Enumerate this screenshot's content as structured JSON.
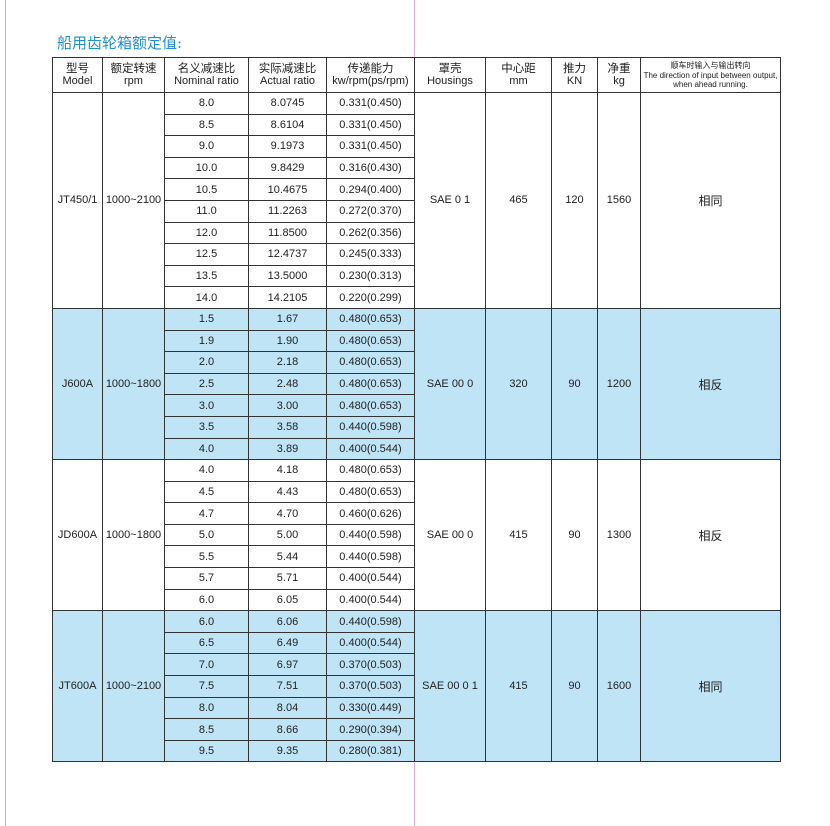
{
  "title": "船用齿轮箱额定值:",
  "table": {
    "header": [
      {
        "cn": "型号",
        "en": "Model"
      },
      {
        "cn": "额定转速",
        "en": "rpm"
      },
      {
        "cn": "名义减速比",
        "en": "Nominal ratio"
      },
      {
        "cn": "实际减速比",
        "en": "Actual ratio"
      },
      {
        "cn": "传递能力",
        "en": "kw/rpm(ps/rpm)"
      },
      {
        "cn": "罩壳",
        "en": "Housings"
      },
      {
        "cn": "中心距",
        "en": "mm"
      },
      {
        "cn": "推力",
        "en": "KN"
      },
      {
        "cn": "净重",
        "en": "kg"
      },
      {
        "cn": "顺车时输入与输出转向",
        "en": "The direction of input between output, when ahead running."
      }
    ],
    "groups": [
      {
        "model": "JT450/1",
        "rpm": "1000~2100",
        "housing": "SAE 0 1",
        "center": "465",
        "thrust": "120",
        "weight": "1560",
        "direction": "相同",
        "rows": [
          [
            "8.0",
            "8.0745",
            "0.331(0.450)"
          ],
          [
            "8.5",
            "8.6104",
            "0.331(0.450)"
          ],
          [
            "9.0",
            "9.1973",
            "0.331(0.450)"
          ],
          [
            "10.0",
            "9.8429",
            "0.316(0.430)"
          ],
          [
            "10.5",
            "10.4675",
            "0.294(0.400)"
          ],
          [
            "11.0",
            "11.2263",
            "0.272(0.370)"
          ],
          [
            "12.0",
            "11.8500",
            "0.262(0.356)"
          ],
          [
            "12.5",
            "12.4737",
            "0.245(0.333)"
          ],
          [
            "13.5",
            "13.5000",
            "0.230(0.313)"
          ],
          [
            "14.0",
            "14.2105",
            "0.220(0.299)"
          ]
        ]
      },
      {
        "model": "J600A",
        "rpm": "1000~1800",
        "housing": "SAE 00 0",
        "center": "320",
        "thrust": "90",
        "weight": "1200",
        "direction": "相反",
        "rows": [
          [
            "1.5",
            "1.67",
            "0.480(0.653)"
          ],
          [
            "1.9",
            "1.90",
            "0.480(0.653)"
          ],
          [
            "2.0",
            "2.18",
            "0.480(0.653)"
          ],
          [
            "2.5",
            "2.48",
            "0.480(0.653)"
          ],
          [
            "3.0",
            "3.00",
            "0.480(0.653)"
          ],
          [
            "3.5",
            "3.58",
            "0.440(0.598)"
          ],
          [
            "4.0",
            "3.89",
            "0.400(0.544)"
          ]
        ]
      },
      {
        "model": "JD600A",
        "rpm": "1000~1800",
        "housing": "SAE 00 0",
        "center": "415",
        "thrust": "90",
        "weight": "1300",
        "direction": "相反",
        "rows": [
          [
            "4.0",
            "4.18",
            "0.480(0.653)"
          ],
          [
            "4.5",
            "4.43",
            "0.480(0.653)"
          ],
          [
            "4.7",
            "4.70",
            "0.460(0.626)"
          ],
          [
            "5.0",
            "5.00",
            "0.440(0.598)"
          ],
          [
            "5.5",
            "5.44",
            "0.440(0.598)"
          ],
          [
            "5.7",
            "5.71",
            "0.400(0.544)"
          ],
          [
            "6.0",
            "6.05",
            "0.400(0.544)"
          ]
        ]
      },
      {
        "model": "JT600A",
        "rpm": "1000~2100",
        "housing": "SAE 00 0 1",
        "center": "415",
        "thrust": "90",
        "weight": "1600",
        "direction": "相同",
        "rows": [
          [
            "6.0",
            "6.06",
            "0.440(0.598)"
          ],
          [
            "6.5",
            "6.49",
            "0.400(0.544)"
          ],
          [
            "7.0",
            "6.97",
            "0.370(0.503)"
          ],
          [
            "7.5",
            "7.51",
            "0.370(0.503)"
          ],
          [
            "8.0",
            "8.04",
            "0.330(0.449)"
          ],
          [
            "8.5",
            "8.66",
            "0.290(0.394)"
          ],
          [
            "9.5",
            "9.35",
            "0.280(0.381)"
          ]
        ]
      }
    ]
  }
}
